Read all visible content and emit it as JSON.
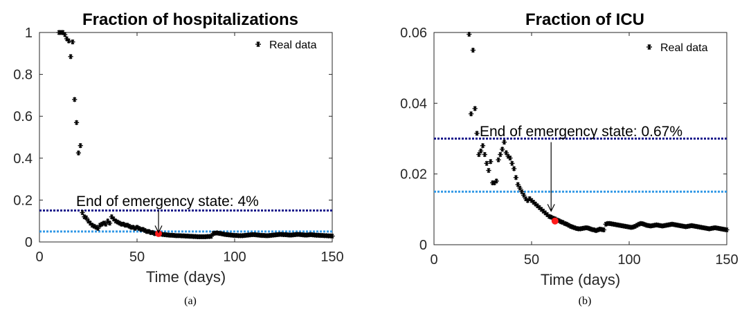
{
  "chart_data": [
    {
      "type": "scatter",
      "title": "Fraction of hospitalizations",
      "xlabel": "Time (days)",
      "ylabel": "",
      "xlim": [
        0,
        150
      ],
      "ylim": [
        0,
        1
      ],
      "xticks": [
        0,
        50,
        100,
        150
      ],
      "yticks": [
        0,
        0.2,
        0.4,
        0.6,
        0.8,
        1
      ],
      "ytick_labels": [
        "0",
        "0.2",
        "0.4",
        "0.6",
        "0.8",
        "1"
      ],
      "legend": {
        "label": "Real data",
        "position": "top-right"
      },
      "series": [
        {
          "name": "Real data",
          "marker": "asterisk",
          "color": "#000000",
          "x": [
            10,
            11,
            12,
            13,
            14,
            15,
            16,
            17,
            18,
            19,
            20,
            21,
            22,
            23,
            24,
            25,
            26,
            27,
            28,
            29,
            30,
            31,
            32,
            33,
            34,
            35,
            36,
            37,
            38,
            39,
            40,
            41,
            42,
            43,
            44,
            45,
            46,
            47,
            48,
            49,
            50,
            51,
            52,
            53,
            54,
            55,
            56,
            57,
            58,
            59,
            60,
            61,
            62,
            63,
            64,
            65,
            66,
            67,
            68,
            69,
            70,
            71,
            72,
            73,
            74,
            75,
            76,
            77,
            78,
            79,
            80,
            81,
            82,
            83,
            84,
            85,
            86,
            87,
            88,
            89,
            90,
            91,
            92,
            93,
            94,
            95,
            96,
            97,
            98,
            99,
            100,
            101,
            102,
            103,
            104,
            105,
            106,
            107,
            108,
            109,
            110,
            111,
            112,
            113,
            114,
            115,
            116,
            117,
            118,
            119,
            120,
            121,
            122,
            123,
            124,
            125,
            126,
            127,
            128,
            129,
            130,
            131,
            132,
            133,
            134,
            135,
            136,
            137,
            138,
            139,
            140,
            141,
            142,
            143,
            144,
            145,
            146,
            147,
            148,
            149,
            150
          ],
          "y": [
            1,
            1,
            1,
            0.99,
            0.97,
            0.96,
            0.885,
            0.955,
            0.68,
            0.57,
            0.425,
            0.46,
            0.14,
            0.12,
            0.115,
            0.1,
            0.09,
            0.08,
            0.075,
            0.07,
            0.065,
            0.08,
            0.085,
            0.09,
            0.085,
            0.1,
            0.09,
            0.12,
            0.11,
            0.1,
            0.095,
            0.09,
            0.085,
            0.085,
            0.08,
            0.08,
            0.075,
            0.07,
            0.07,
            0.065,
            0.07,
            0.065,
            0.06,
            0.06,
            0.055,
            0.05,
            0.05,
            0.045,
            0.045,
            0.04,
            0.04,
            0.04,
            0.038,
            0.036,
            0.035,
            0.034,
            0.033,
            0.032,
            0.032,
            0.031,
            0.03,
            0.03,
            0.03,
            0.029,
            0.029,
            0.028,
            0.028,
            0.027,
            0.027,
            0.026,
            0.026,
            0.025,
            0.025,
            0.025,
            0.025,
            0.025,
            0.026,
            0.026,
            0.027,
            0.04,
            0.042,
            0.043,
            0.041,
            0.04,
            0.038,
            0.036,
            0.035,
            0.034,
            0.033,
            0.032,
            0.031,
            0.031,
            0.03,
            0.03,
            0.03,
            0.031,
            0.032,
            0.033,
            0.034,
            0.035,
            0.035,
            0.034,
            0.033,
            0.032,
            0.031,
            0.031,
            0.03,
            0.03,
            0.031,
            0.032,
            0.033,
            0.034,
            0.035,
            0.036,
            0.036,
            0.035,
            0.035,
            0.034,
            0.033,
            0.033,
            0.034,
            0.035,
            0.036,
            0.036,
            0.035,
            0.034,
            0.033,
            0.033,
            0.034,
            0.035,
            0.034,
            0.033,
            0.032,
            0.032,
            0.031,
            0.031,
            0.03,
            0.03,
            0.029,
            0.029,
            0.028
          ]
        }
      ],
      "hlines": [
        {
          "y": 0.15,
          "color": "#1a1a8c"
        },
        {
          "y": 0.05,
          "color": "#3399e6"
        }
      ],
      "highlight": {
        "x": 61,
        "y": 0.04,
        "color": "#ff1a1a"
      },
      "annotation": {
        "text": "End of emergency state: 4%",
        "arrow_from": [
          61,
          0.15
        ],
        "arrow_to": [
          61,
          0.045
        ]
      },
      "caption": "(a)"
    },
    {
      "type": "scatter",
      "title": "Fraction of ICU",
      "xlabel": "Time (days)",
      "ylabel": "",
      "xlim": [
        0,
        150
      ],
      "ylim": [
        0,
        0.06
      ],
      "xticks": [
        0,
        50,
        100,
        150
      ],
      "yticks": [
        0,
        0.02,
        0.04,
        0.06
      ],
      "ytick_labels": [
        "0",
        "0.02",
        "0.04",
        "0.06"
      ],
      "legend": {
        "label": "Real data",
        "position": "top-right"
      },
      "series": [
        {
          "name": "Real data",
          "marker": "asterisk",
          "color": "#000000",
          "x": [
            18,
            19,
            20,
            21,
            22,
            23,
            24,
            25,
            26,
            27,
            28,
            29,
            30,
            31,
            32,
            33,
            34,
            35,
            36,
            37,
            38,
            39,
            40,
            41,
            42,
            43,
            44,
            45,
            46,
            47,
            48,
            49,
            50,
            51,
            52,
            53,
            54,
            55,
            56,
            57,
            58,
            59,
            60,
            61,
            62,
            63,
            64,
            65,
            66,
            67,
            68,
            69,
            70,
            71,
            72,
            73,
            74,
            75,
            76,
            77,
            78,
            79,
            80,
            81,
            82,
            83,
            84,
            85,
            86,
            87,
            88,
            89,
            90,
            91,
            92,
            93,
            94,
            95,
            96,
            97,
            98,
            99,
            100,
            101,
            102,
            103,
            104,
            105,
            106,
            107,
            108,
            109,
            110,
            111,
            112,
            113,
            114,
            115,
            116,
            117,
            118,
            119,
            120,
            121,
            122,
            123,
            124,
            125,
            126,
            127,
            128,
            129,
            130,
            131,
            132,
            133,
            134,
            135,
            136,
            137,
            138,
            139,
            140,
            141,
            142,
            143,
            144,
            145,
            146,
            147,
            148,
            149,
            150
          ],
          "y": [
            0.0595,
            0.037,
            0.055,
            0.0385,
            0.0315,
            0.0255,
            0.0265,
            0.028,
            0.0255,
            0.023,
            0.021,
            0.0235,
            0.0175,
            0.0175,
            0.018,
            0.024,
            0.0255,
            0.027,
            0.029,
            0.026,
            0.025,
            0.0245,
            0.023,
            0.0215,
            0.019,
            0.017,
            0.016,
            0.015,
            0.014,
            0.013,
            0.0125,
            0.013,
            0.0125,
            0.012,
            0.0115,
            0.011,
            0.0105,
            0.01,
            0.0095,
            0.009,
            0.0085,
            0.008,
            0.0078,
            0.0075,
            0.0073,
            0.007,
            0.0068,
            0.0065,
            0.0063,
            0.006,
            0.0058,
            0.0055,
            0.0052,
            0.005,
            0.0048,
            0.0046,
            0.0045,
            0.0045,
            0.0046,
            0.0047,
            0.0048,
            0.0047,
            0.0045,
            0.0043,
            0.0042,
            0.004,
            0.0042,
            0.0044,
            0.0043,
            0.0042,
            0.0058,
            0.006,
            0.006,
            0.0059,
            0.0058,
            0.0057,
            0.0056,
            0.0055,
            0.0054,
            0.0053,
            0.0052,
            0.0051,
            0.005,
            0.0049,
            0.005,
            0.0052,
            0.0055,
            0.0058,
            0.006,
            0.0059,
            0.0057,
            0.0055,
            0.0054,
            0.0053,
            0.0054,
            0.0055,
            0.0056,
            0.0055,
            0.0054,
            0.0053,
            0.0054,
            0.0055,
            0.0056,
            0.0057,
            0.0058,
            0.0057,
            0.0056,
            0.0055,
            0.0054,
            0.0053,
            0.0052,
            0.0051,
            0.0052,
            0.0053,
            0.0054,
            0.0053,
            0.0052,
            0.0051,
            0.005,
            0.0049,
            0.0048,
            0.0047,
            0.0046,
            0.0045,
            0.0046,
            0.0047,
            0.0048,
            0.0047,
            0.0046,
            0.0045,
            0.0044,
            0.0043,
            0.0042
          ]
        }
      ],
      "hlines": [
        {
          "y": 0.03,
          "color": "#1a1a8c"
        },
        {
          "y": 0.015,
          "color": "#3399e6"
        }
      ],
      "highlight": {
        "x": 62,
        "y": 0.0067,
        "color": "#ff1a1a"
      },
      "annotation": {
        "text": "End of emergency state: 0.67%",
        "arrow_from": [
          60,
          0.029
        ],
        "arrow_to": [
          60,
          0.0095
        ]
      },
      "caption": "(b)"
    }
  ]
}
